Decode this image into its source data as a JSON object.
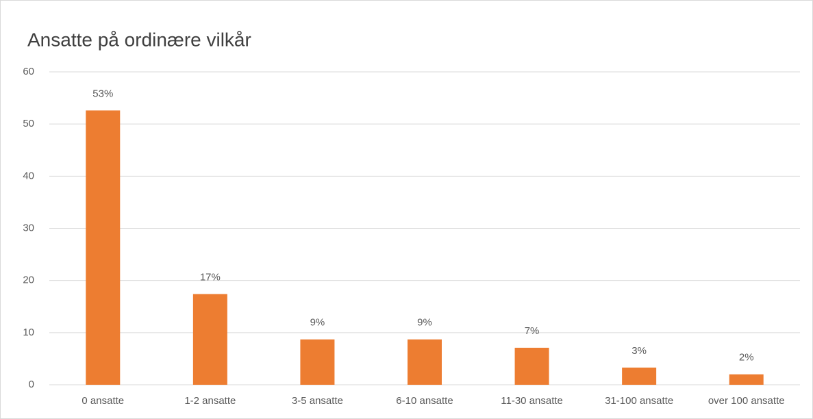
{
  "chart_data": {
    "type": "bar",
    "title": "Ansatte på ordinære vilkår",
    "categories": [
      "0 ansatte",
      "1-2 ansatte",
      "3-5 ansatte",
      "6-10 ansatte",
      "11-30 ansatte",
      "31-100 ansatte",
      "over 100 ansatte"
    ],
    "values": [
      52.6,
      17.4,
      8.7,
      8.7,
      7.1,
      3.3,
      2.0
    ],
    "value_labels": [
      "53%",
      "17%",
      "9%",
      "9%",
      "7%",
      "3%",
      "2%"
    ],
    "color": "#ed7d31",
    "ylim": [
      0,
      60
    ],
    "yticks": [
      0,
      10,
      20,
      30,
      40,
      50,
      60
    ],
    "grid": true
  }
}
